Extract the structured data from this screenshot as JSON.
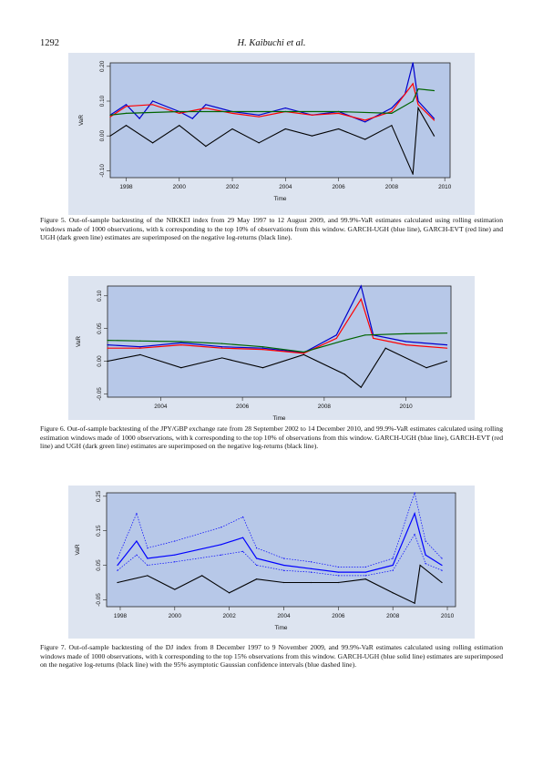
{
  "header": {
    "page_number": "1292",
    "author": "H. Kaibuchi et al."
  },
  "figures": [
    {
      "caption": "Figure 5.  Out-of-sample backtesting of the NIKKEI index from 29 May 1997 to 12 August 2009, and 99.9%-VaR estimates calculated using rolling estimation windows made of 1000 observations, with k corresponding to the top 10% of observations from this window. GARCH-UGH (blue line), GARCH-EVT (red line) and UGH (dark green line) estimates are superimposed on the negative log-returns (black line).",
      "chart_data": {
        "type": "line",
        "xlabel": "Time",
        "ylabel": "VaR",
        "x_ticks": [
          "1998",
          "2000",
          "2002",
          "2004",
          "2006",
          "2008",
          "2010"
        ],
        "y_ticks": [
          "-0.10",
          "0.00",
          "0.10",
          "0.20"
        ],
        "xlim": [
          1997.4,
          2010.2
        ],
        "ylim": [
          -0.12,
          0.21
        ],
        "series": [
          {
            "color": "#000000",
            "x": [
              1997.4,
              1998,
              1999,
              2000,
              2001,
              2002,
              2003,
              2004,
              2005,
              2006,
              2007,
              2008,
              2008.8,
              2009,
              2009.6
            ],
            "y": [
              0.0,
              0.03,
              -0.02,
              0.03,
              -0.03,
              0.02,
              -0.02,
              0.02,
              0.0,
              0.02,
              -0.01,
              0.03,
              -0.11,
              0.08,
              0.0
            ]
          },
          {
            "color": "#0000cc",
            "x": [
              1997.4,
              1998,
              1998.5,
              1999,
              2000,
              2000.5,
              2001,
              2002,
              2003,
              2004,
              2005,
              2006,
              2007,
              2008,
              2008.5,
              2008.8,
              2009,
              2009.6
            ],
            "y": [
              0.06,
              0.09,
              0.05,
              0.1,
              0.07,
              0.05,
              0.09,
              0.07,
              0.06,
              0.08,
              0.06,
              0.07,
              0.04,
              0.08,
              0.12,
              0.21,
              0.1,
              0.05
            ]
          },
          {
            "color": "#ff0000",
            "x": [
              1997.4,
              1998,
              1999,
              2000,
              2001,
              2002,
              2003,
              2004,
              2005,
              2006,
              2007,
              2008,
              2008.8,
              2009,
              2009.6
            ],
            "y": [
              0.055,
              0.085,
              0.09,
              0.065,
              0.08,
              0.065,
              0.055,
              0.07,
              0.06,
              0.065,
              0.045,
              0.07,
              0.15,
              0.09,
              0.045
            ]
          },
          {
            "color": "#006400",
            "x": [
              1997.4,
              1998,
              2000,
              2002,
              2004,
              2006,
              2008,
              2008.8,
              2009,
              2009.6
            ],
            "y": [
              0.06,
              0.065,
              0.07,
              0.07,
              0.07,
              0.07,
              0.065,
              0.1,
              0.135,
              0.13
            ]
          }
        ]
      }
    },
    {
      "caption": "Figure 6.  Out-of-sample backtesting of the JPY/GBP exchange rate from 28 September 2002 to 14 December 2010, and 99.9%-VaR estimates calculated using rolling estimation windows made of 1000 observations, with k corresponding to the top 10% of observations from this window. GARCH-UGH (blue line), GARCH-EVT (red line) and UGH (dark green line) estimates are superimposed on the negative log-returns (black line).",
      "chart_data": {
        "type": "line",
        "xlabel": "Time",
        "ylabel": "VaR",
        "x_ticks": [
          "2004",
          "2006",
          "2008",
          "2010"
        ],
        "y_ticks": [
          "-0.05",
          "0.00",
          "0.05",
          "0.10"
        ],
        "xlim": [
          2002.7,
          2011.1
        ],
        "ylim": [
          -0.055,
          0.115
        ],
        "series": [
          {
            "color": "#000000",
            "x": [
              2002.7,
              2003.5,
              2004.5,
              2005.5,
              2006.5,
              2007.5,
              2008.5,
              2008.9,
              2009.5,
              2010.5,
              2011
            ],
            "y": [
              0.0,
              0.01,
              -0.01,
              0.005,
              -0.01,
              0.01,
              -0.02,
              -0.04,
              0.02,
              -0.01,
              0.0
            ]
          },
          {
            "color": "#0000cc",
            "x": [
              2002.7,
              2003.5,
              2004.5,
              2005.5,
              2006.5,
              2007.5,
              2008.3,
              2008.9,
              2009.2,
              2010,
              2011
            ],
            "y": [
              0.025,
              0.022,
              0.028,
              0.022,
              0.02,
              0.013,
              0.04,
              0.115,
              0.04,
              0.03,
              0.025
            ]
          },
          {
            "color": "#ff0000",
            "x": [
              2002.7,
              2003.5,
              2004.5,
              2005.5,
              2006.5,
              2007.5,
              2008.3,
              2008.9,
              2009.2,
              2010,
              2011
            ],
            "y": [
              0.02,
              0.02,
              0.025,
              0.02,
              0.018,
              0.012,
              0.035,
              0.095,
              0.035,
              0.025,
              0.02
            ]
          },
          {
            "color": "#006400",
            "x": [
              2002.7,
              2003.5,
              2004.5,
              2005.5,
              2006.5,
              2007.5,
              2008.5,
              2009,
              2010,
              2011
            ],
            "y": [
              0.032,
              0.031,
              0.03,
              0.027,
              0.022,
              0.014,
              0.032,
              0.04,
              0.042,
              0.043
            ]
          }
        ]
      }
    },
    {
      "caption": "Figure 7.  Out-of-sample backtesting of the DJ index from 8 December 1997 to 9 November 2009, and 99.9%-VaR estimates calculated using rolling estimation windows made of 1000 observations, with k corresponding to the top 15% observations from this window. GARCH-UGH (blue solid line) estimates are superimposed on the negative log-returns (black line) with the 95% asymptotic Gaussian confidence intervals (blue dashed line).",
      "chart_data": {
        "type": "line",
        "xlabel": "Time",
        "ylabel": "VaR",
        "x_ticks": [
          "1998",
          "2000",
          "2002",
          "2004",
          "2006",
          "2008",
          "2010"
        ],
        "y_ticks": [
          "-0.05",
          "0.05",
          "0.15",
          "0.25"
        ],
        "xlim": [
          1997.5,
          2010.3
        ],
        "ylim": [
          -0.07,
          0.26
        ],
        "series": [
          {
            "color": "#000000",
            "x": [
              1997.9,
              1999,
              2000,
              2001,
              2002,
              2003,
              2004,
              2005,
              2006,
              2007,
              2008,
              2008.8,
              2009,
              2009.8
            ],
            "y": [
              0.0,
              0.02,
              -0.02,
              0.02,
              -0.03,
              0.01,
              0.0,
              0.0,
              0.0,
              0.01,
              -0.03,
              -0.06,
              0.05,
              0.0
            ]
          },
          {
            "color": "#0000ff",
            "x": [
              1997.9,
              1998.6,
              1999,
              2000,
              2001.7,
              2002.5,
              2003,
              2004,
              2005,
              2006,
              2007,
              2008,
              2008.8,
              2009.2,
              2009.8
            ],
            "y": [
              0.05,
              0.12,
              0.07,
              0.08,
              0.11,
              0.13,
              0.07,
              0.05,
              0.04,
              0.03,
              0.03,
              0.05,
              0.2,
              0.08,
              0.05
            ]
          },
          {
            "color": "#0000ff",
            "name": "ci-upper",
            "x": [
              1997.9,
              1998.6,
              1999,
              2000,
              2001.7,
              2002.5,
              2003,
              2004,
              2005,
              2006,
              2007,
              2008,
              2008.8,
              2009.2,
              2009.8
            ],
            "y": [
              0.07,
              0.2,
              0.1,
              0.12,
              0.16,
              0.19,
              0.1,
              0.07,
              0.06,
              0.045,
              0.045,
              0.07,
              0.26,
              0.12,
              0.07
            ]
          },
          {
            "color": "#0000ff",
            "name": "ci-lower",
            "x": [
              1997.9,
              1998.6,
              1999,
              2000,
              2001.7,
              2002.5,
              2003,
              2004,
              2005,
              2006,
              2007,
              2008,
              2008.8,
              2009.2,
              2009.8
            ],
            "y": [
              0.035,
              0.08,
              0.05,
              0.06,
              0.08,
              0.09,
              0.05,
              0.035,
              0.03,
              0.02,
              0.02,
              0.035,
              0.14,
              0.055,
              0.035
            ]
          }
        ]
      }
    }
  ]
}
